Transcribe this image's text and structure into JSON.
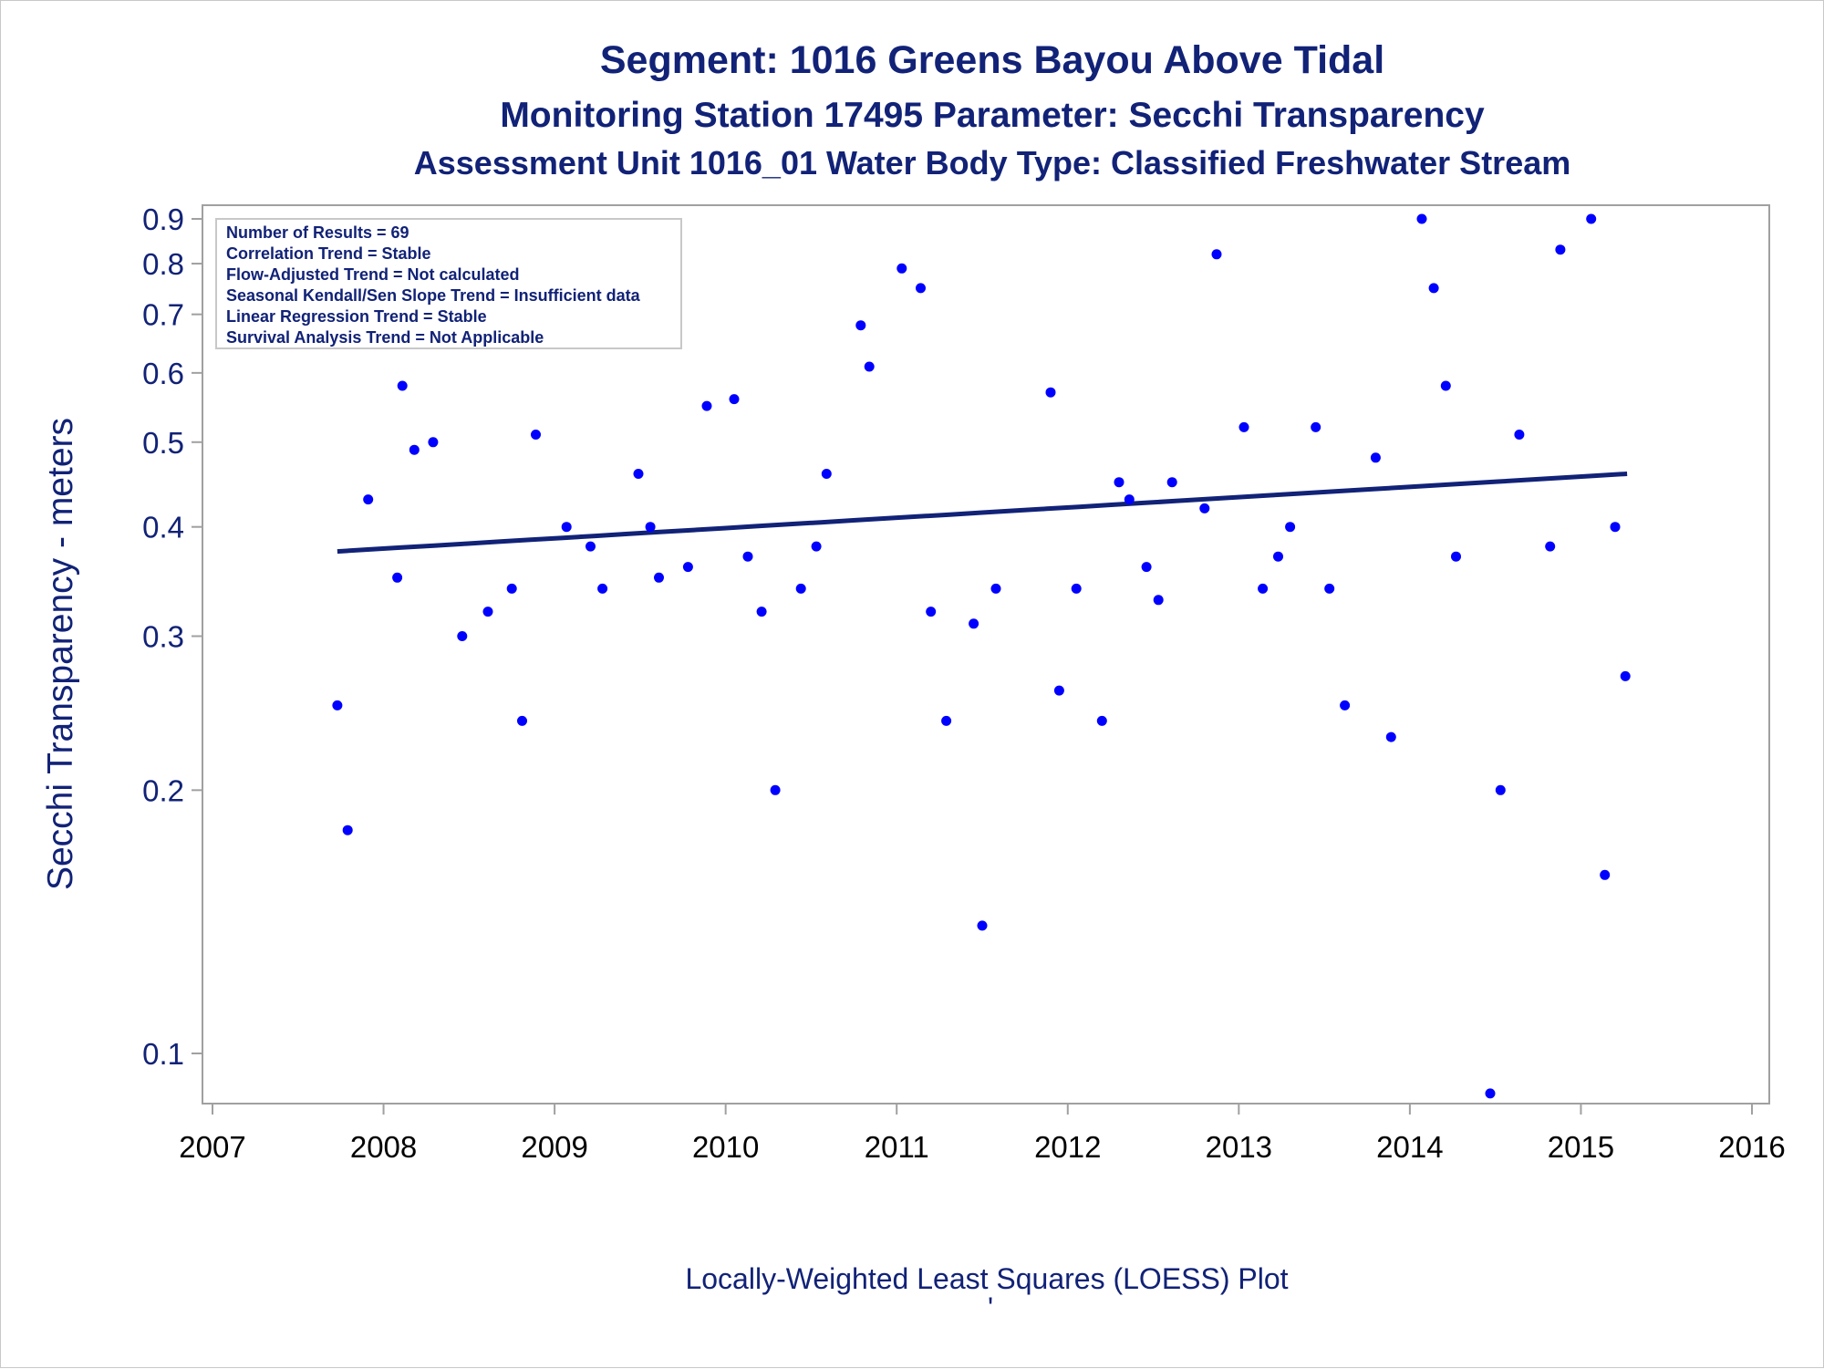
{
  "colors": {
    "text": "#112277",
    "ticks_y": "#112277",
    "ticks_x": "#000000",
    "points": "#0000ff",
    "trend": "#112277",
    "axes": "#a0a0a0"
  },
  "titles": {
    "line1": "Segment: 1016  Greens Bayou Above Tidal",
    "line2": "Monitoring Station 17495 Parameter: Secchi Transparency",
    "line3": "Assessment Unit 1016_01   Water Body Type: Classified Freshwater Stream"
  },
  "stats_box": [
    "Number of Results = 69",
    "Correlation Trend = Stable",
    "Flow-Adjusted Trend = Not calculated",
    "Seasonal Kendall/Sen Slope Trend = Insufficient data",
    "Linear Regression Trend = Stable",
    "Survival Analysis Trend = Not Applicable"
  ],
  "footnote": "Locally-Weighted Least Squares (LOESS) Plot",
  "footnote_mark": "'",
  "chart_data": {
    "type": "scatter",
    "ylabel": "Secchi Transparency - meters",
    "xlabel": "",
    "y_scale": "log",
    "xlim": [
      2007,
      2016
    ],
    "ylim": [
      0.085,
      0.95
    ],
    "x_ticks": [
      "2007",
      "2008",
      "2009",
      "2010",
      "2011",
      "2012",
      "2013",
      "2014",
      "2015",
      "2016"
    ],
    "y_ticks": [
      "0.1",
      "0.2",
      "0.3",
      "0.4",
      "0.5",
      "0.6",
      "0.7",
      "0.8",
      "0.9"
    ],
    "grid": false,
    "legend": "none",
    "series": [
      {
        "values": [
          [
            2007.73,
            0.25
          ],
          [
            2007.79,
            0.18
          ],
          [
            2007.91,
            0.43
          ],
          [
            2008.08,
            0.35
          ],
          [
            2008.11,
            0.58
          ],
          [
            2008.18,
            0.49
          ],
          [
            2008.29,
            0.5
          ],
          [
            2008.46,
            0.3
          ],
          [
            2008.61,
            0.32
          ],
          [
            2008.75,
            0.34
          ],
          [
            2008.81,
            0.24
          ],
          [
            2008.89,
            0.51
          ],
          [
            2009.07,
            0.4
          ],
          [
            2009.21,
            0.38
          ],
          [
            2009.28,
            0.34
          ],
          [
            2009.49,
            0.46
          ],
          [
            2009.56,
            0.4
          ],
          [
            2009.61,
            0.35
          ],
          [
            2009.78,
            0.36
          ],
          [
            2009.89,
            0.55
          ],
          [
            2010.05,
            0.56
          ],
          [
            2010.13,
            0.37
          ],
          [
            2010.21,
            0.32
          ],
          [
            2010.29,
            0.2
          ],
          [
            2010.44,
            0.34
          ],
          [
            2010.53,
            0.38
          ],
          [
            2010.59,
            0.46
          ],
          [
            2010.79,
            0.68
          ],
          [
            2010.84,
            0.61
          ],
          [
            2011.03,
            0.79
          ],
          [
            2011.14,
            0.75
          ],
          [
            2011.2,
            0.32
          ],
          [
            2011.29,
            0.24
          ],
          [
            2011.45,
            0.31
          ],
          [
            2011.5,
            0.14
          ],
          [
            2011.58,
            0.34
          ],
          [
            2011.9,
            0.57
          ],
          [
            2011.95,
            0.26
          ],
          [
            2012.05,
            0.34
          ],
          [
            2012.2,
            0.24
          ],
          [
            2012.3,
            0.45
          ],
          [
            2012.36,
            0.43
          ],
          [
            2012.46,
            0.36
          ],
          [
            2012.53,
            0.33
          ],
          [
            2012.61,
            0.45
          ],
          [
            2012.8,
            0.42
          ],
          [
            2012.87,
            0.82
          ],
          [
            2013.03,
            0.52
          ],
          [
            2013.14,
            0.34
          ],
          [
            2013.23,
            0.37
          ],
          [
            2013.3,
            0.4
          ],
          [
            2013.45,
            0.52
          ],
          [
            2013.53,
            0.34
          ],
          [
            2013.62,
            0.25
          ],
          [
            2013.8,
            0.48
          ],
          [
            2013.89,
            0.23
          ],
          [
            2014.07,
            0.9
          ],
          [
            2014.14,
            0.75
          ],
          [
            2014.21,
            0.58
          ],
          [
            2014.27,
            0.37
          ],
          [
            2014.47,
            0.09
          ],
          [
            2014.53,
            0.2
          ],
          [
            2014.64,
            0.51
          ],
          [
            2014.82,
            0.38
          ],
          [
            2014.88,
            0.83
          ],
          [
            2015.06,
            0.9
          ],
          [
            2015.14,
            0.16
          ],
          [
            2015.2,
            0.4
          ],
          [
            2015.26,
            0.27
          ]
        ]
      }
    ],
    "trend_line": {
      "x": [
        2007.73,
        2015.27
      ],
      "y": [
        0.375,
        0.46
      ]
    }
  }
}
